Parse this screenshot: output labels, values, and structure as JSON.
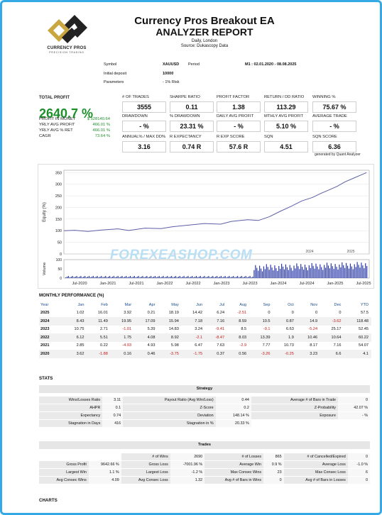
{
  "header": {
    "logo_text": "CURRENCY PROS",
    "logo_sub": "PRECISION TRADING",
    "title": "Currency Pros Breakout EA",
    "subtitle": "ANALYZER REPORT",
    "timeframe": "Daily, London",
    "source": "Source: Dukascopy Data"
  },
  "info": {
    "symbol_label": "Symbol",
    "symbol_value": "XAUUSD",
    "period_label": "Period",
    "period_value": "M1 : 02.01.2020 - 08.08.2025",
    "deposit_label": "Initial deposit",
    "deposit_value": "10000",
    "params_label": "Parameters",
    "params_value": "- 1% Risk"
  },
  "summary": {
    "total_profit_label": "TOTAL PROFIT",
    "total_profit_value": "2640.7 %",
    "rows": [
      {
        "label": "PROFIT IN MONEY",
        "value": "$ 528140.64"
      },
      {
        "label": "YRLY AVG PROFIT",
        "value": "466.01 %"
      },
      {
        "label": "YRLY AVG % RET",
        "value": "466.01 %"
      },
      {
        "label": "CAGR",
        "value": "73.64 %"
      }
    ]
  },
  "metrics": [
    {
      "label": "# OF TRADES",
      "value": "3555"
    },
    {
      "label": "SHARPE RATIO",
      "value": "0.11"
    },
    {
      "label": "PROFIT FACTOR",
      "value": "1.38"
    },
    {
      "label": "RETURN / DD RATIO",
      "value": "113.29"
    },
    {
      "label": "WINNING %",
      "value": "75.67 %"
    },
    {
      "label": "DRAWDOWN",
      "value": "- %"
    },
    {
      "label": "% DRAWDOWN",
      "value": "23.31 %"
    },
    {
      "label": "DAILY AVG PROFIT",
      "value": "- %"
    },
    {
      "label": "MTHLY AVG PROFIT",
      "value": "5.10 %"
    },
    {
      "label": "AVERAGE TRADE",
      "value": "- %"
    },
    {
      "label": "ANNUAL% / MAX DD%",
      "value": "3.16"
    },
    {
      "label": "R EXPECTANCY",
      "value": "0.74 R"
    },
    {
      "label": "R EXP SCORE",
      "value": "57.6 R"
    },
    {
      "label": "SQN",
      "value": "4.51"
    },
    {
      "label": "SQN SCORE",
      "value": "6.36"
    }
  ],
  "generated_by": "generated by Quant Analyzer",
  "chart_data": {
    "type": "line",
    "ylabel": "Equity (%)",
    "volume_label": "Volume",
    "y_ticks": [
      "350",
      "300",
      "250",
      "200",
      "150",
      "100",
      "50",
      "0"
    ],
    "ylim": [
      0,
      360
    ],
    "vol_ticks": [
      "100",
      "50",
      "0"
    ],
    "x_ticks": [
      "Jul-2020",
      "Jan-2021",
      "Jul-2021",
      "Jan-2022",
      "Jul-2022",
      "Jan-2023",
      "Jul-2023",
      "Jan-2024",
      "Jul-2024",
      "Jan-2025",
      "Jul-2025"
    ],
    "inner_labels": [
      "2024",
      "2025"
    ],
    "equity": [
      {
        "x": 2020.0,
        "y": 100
      },
      {
        "x": 2020.2,
        "y": 102
      },
      {
        "x": 2020.45,
        "y": 97
      },
      {
        "x": 2020.7,
        "y": 103
      },
      {
        "x": 2021.0,
        "y": 108
      },
      {
        "x": 2021.2,
        "y": 101
      },
      {
        "x": 2021.5,
        "y": 111
      },
      {
        "x": 2021.8,
        "y": 109
      },
      {
        "x": 2022.0,
        "y": 117
      },
      {
        "x": 2022.3,
        "y": 124
      },
      {
        "x": 2022.6,
        "y": 131
      },
      {
        "x": 2022.9,
        "y": 128
      },
      {
        "x": 2023.1,
        "y": 140
      },
      {
        "x": 2023.4,
        "y": 147
      },
      {
        "x": 2023.6,
        "y": 144
      },
      {
        "x": 2023.8,
        "y": 160
      },
      {
        "x": 2024.0,
        "y": 183
      },
      {
        "x": 2024.2,
        "y": 204
      },
      {
        "x": 2024.4,
        "y": 228
      },
      {
        "x": 2024.6,
        "y": 243
      },
      {
        "x": 2024.75,
        "y": 260
      },
      {
        "x": 2024.9,
        "y": 275
      },
      {
        "x": 2025.05,
        "y": 290
      },
      {
        "x": 2025.2,
        "y": 310
      },
      {
        "x": 2025.35,
        "y": 325
      },
      {
        "x": 2025.5,
        "y": 340
      },
      {
        "x": 2025.6,
        "y": 350
      }
    ]
  },
  "watermark": "FOREXEASHOP.COM",
  "monthly": {
    "title": "MONTHLY PERFORMANCE (%)",
    "headers": [
      "Year",
      "Jan",
      "Feb",
      "Mar",
      "Apr",
      "May",
      "Jun",
      "Jul",
      "Aug",
      "Sep",
      "Oct",
      "Nov",
      "Dec",
      "YTD"
    ],
    "rows": [
      [
        "2025",
        "1.02",
        "16.01",
        "3.92",
        "0.21",
        "18.19",
        "14.42",
        "6.24",
        "-2.51",
        "0",
        "0",
        "0",
        "0",
        "57.5"
      ],
      [
        "2024",
        "8.43",
        "11.49",
        "19.95",
        "17.09",
        "15.94",
        "7.18",
        "7.16",
        "8.59",
        "10.5",
        "0.87",
        "14.9",
        "-3.62",
        "118.48"
      ],
      [
        "2023",
        "10.75",
        "2.71",
        "-1.01",
        "5.39",
        "14.83",
        "3.24",
        "-9.41",
        "8.5",
        "-9.1",
        "6.63",
        "-5.24",
        "25.17",
        "52.45"
      ],
      [
        "2022",
        "6.12",
        "5.51",
        "1.75",
        "4.08",
        "8.92",
        "-2.1",
        "-8.47",
        "8.03",
        "13.39",
        "1.9",
        "10.46",
        "10.64",
        "60.22"
      ],
      [
        "2021",
        "2.85",
        "0.22",
        "-4.93",
        "4.93",
        "5.98",
        "6.47",
        "7.63",
        "-2.9",
        "7.77",
        "10.73",
        "8.17",
        "7.16",
        "54.07"
      ],
      [
        "2020",
        "3.62",
        "-1.88",
        "0.16",
        "0.46",
        "-3.75",
        "-1.75",
        "0.37",
        "0.56",
        "-3.26",
        "-0.25",
        "3.23",
        "6.6",
        "4.1"
      ]
    ]
  },
  "stats": {
    "title": "STATS",
    "strategy_title": "Strategy",
    "strategy_rows": [
      [
        "Wins/Losses Ratio",
        "3.11",
        "Payout Ratio (Avg Win/Loss)",
        "0.44",
        "Average # of Bars in Trade",
        "0"
      ],
      [
        "AHPR",
        "0.1",
        "Z-Score",
        "0.2",
        "Z-Probability",
        "42.07 %"
      ],
      [
        "Expectancy",
        "0.74",
        "Deviation",
        "148.14 %",
        "Exposure",
        "- %"
      ],
      [
        "Stagnation in Days",
        "416",
        "Stagnation in %",
        "20.33 %",
        "",
        ""
      ]
    ],
    "trades_title": "Trades",
    "trades_rows": [
      [
        "",
        "",
        "# of Wins",
        "2690",
        "# of Losses",
        "865",
        "# of Cancelled/Expired",
        "0"
      ],
      [
        "Gross Profit",
        "9642.66 %",
        "Gross Loss",
        "-7001.96 %",
        "Average Win",
        "0.9 %",
        "Average Loss",
        "-1.0 %"
      ],
      [
        "Largest Win",
        "1.1 %",
        "Largest Loss",
        "-1.2 %",
        "Max Consec Wins",
        "23",
        "Max Consec Loss",
        "6"
      ],
      [
        "Avg Consec Wins",
        "4.09",
        "Avg Consec Loss",
        "1.32",
        "Avg # of Bars in Wins",
        "0",
        "Avg # of Bars in Losses",
        "0"
      ]
    ]
  },
  "charts_title": "CHARTS"
}
